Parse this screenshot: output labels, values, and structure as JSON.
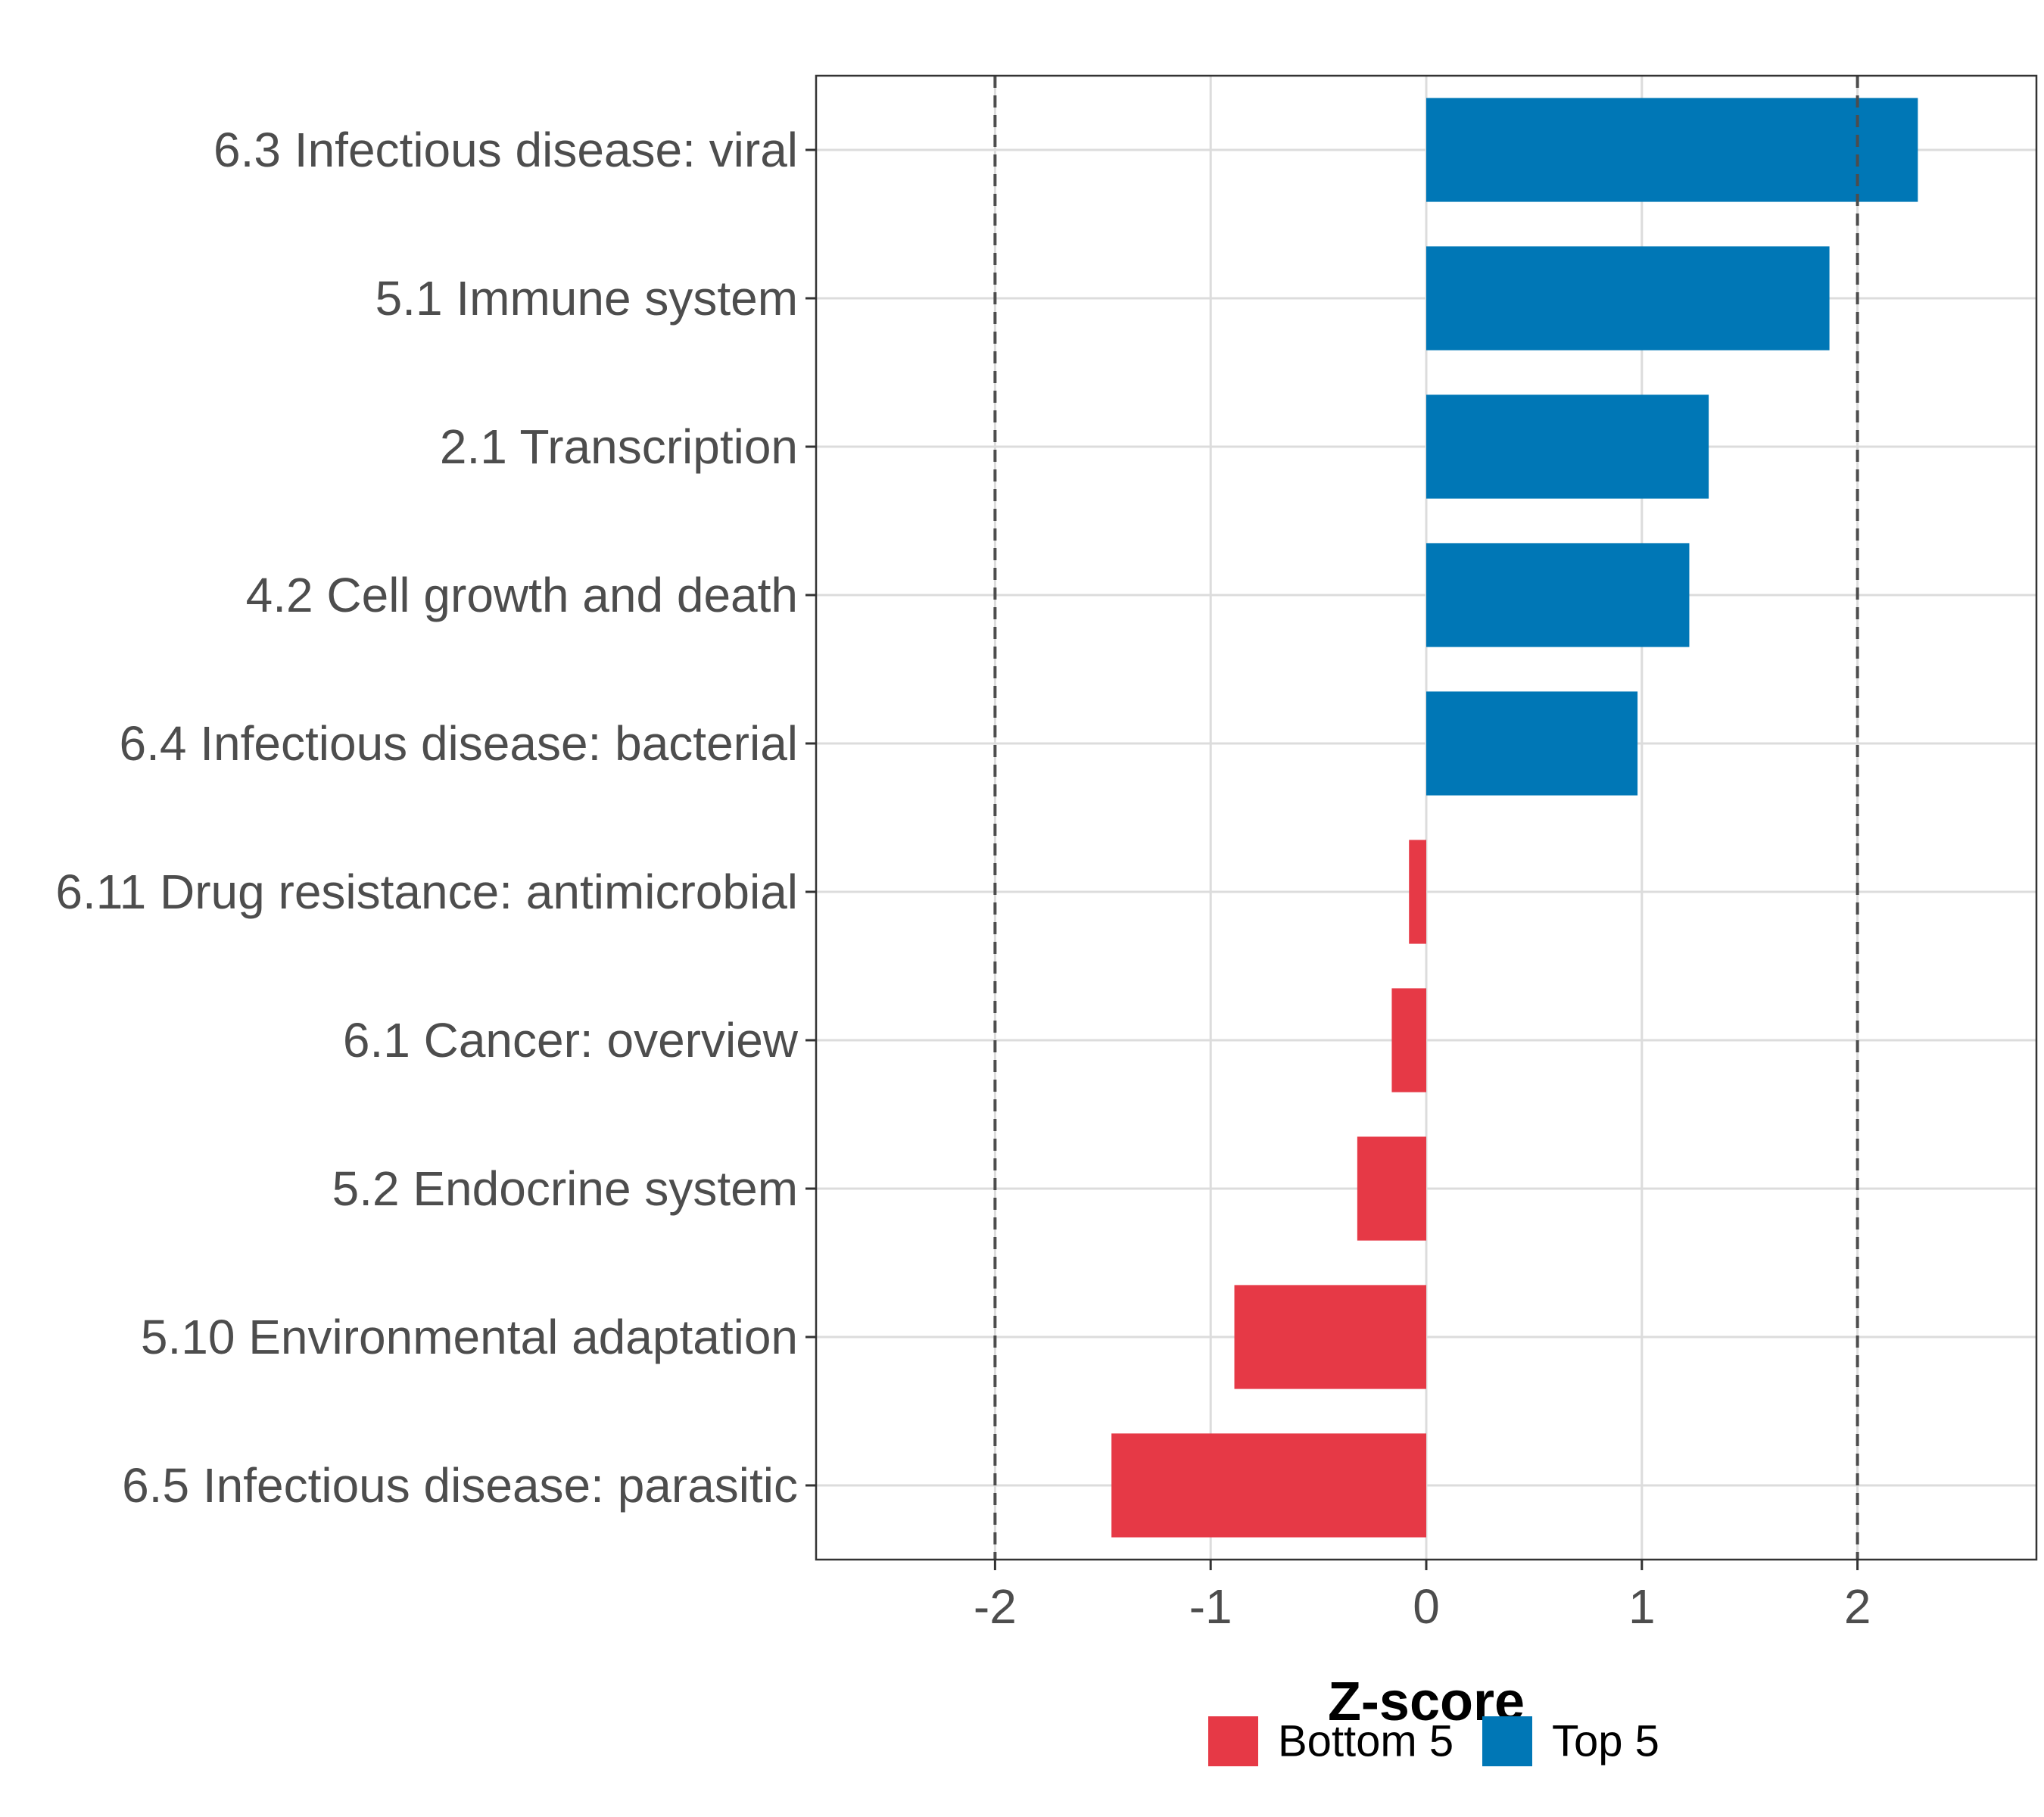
{
  "chart_data": {
    "type": "bar",
    "orientation": "horizontal",
    "title": "",
    "xlabel": "Z-score",
    "ylabel": "",
    "xlim": [
      -2.83,
      2.83
    ],
    "x_ticks": [
      -2,
      -1,
      0,
      1,
      2
    ],
    "x_tick_labels": [
      "-2",
      "-1",
      "0",
      "1",
      "2"
    ],
    "reference_lines": [
      -2,
      2
    ],
    "grid": true,
    "categories": [
      "6.3 Infectious disease: viral",
      "5.1 Immune system",
      "2.1 Transcription",
      "4.2 Cell growth and death",
      "6.4 Infectious disease: bacterial",
      "6.11 Drug resistance: antimicrobial",
      "6.1 Cancer: overview",
      "5.2 Endocrine system",
      "5.10 Environmental adaptation",
      "6.5 Infectious disease: parasitic"
    ],
    "values": [
      2.28,
      1.87,
      1.31,
      1.22,
      0.98,
      -0.08,
      -0.16,
      -0.32,
      -0.89,
      -1.46
    ],
    "groups": [
      "Top 5",
      "Top 5",
      "Top 5",
      "Top 5",
      "Top 5",
      "Bottom 5",
      "Bottom 5",
      "Bottom 5",
      "Bottom 5",
      "Bottom 5"
    ],
    "legend": {
      "position": "bottom",
      "entries": [
        {
          "name": "Bottom 5",
          "color": "#e63946"
        },
        {
          "name": "Top 5",
          "color": "#0077b6"
        }
      ]
    }
  }
}
